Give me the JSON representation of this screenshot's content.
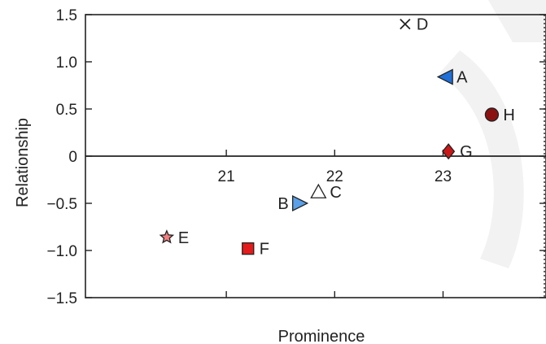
{
  "chart_data": {
    "type": "scatter",
    "title": "",
    "xlabel": "Prominence",
    "ylabel": "Relationship",
    "xlim": [
      19.7,
      23.95
    ],
    "ylim": [
      -1.5,
      1.5
    ],
    "x_ticks": [
      {
        "value": 21,
        "label": "21"
      },
      {
        "value": 22,
        "label": "22"
      },
      {
        "value": 23,
        "label": "23"
      }
    ],
    "y_ticks": [
      {
        "value": 1.5,
        "label": "1.5"
      },
      {
        "value": 1.0,
        "label": "1.0"
      },
      {
        "value": 0.5,
        "label": "0.5"
      },
      {
        "value": 0,
        "label": "0"
      },
      {
        "value": -0.5,
        "label": "−0.5"
      },
      {
        "value": -1.0,
        "label": "−1.0"
      },
      {
        "value": -1.5,
        "label": "−1.5"
      }
    ],
    "grid": false,
    "zero_line": true,
    "points": [
      {
        "label": "A",
        "x": 23.02,
        "y": 0.84,
        "marker": "triangle-left",
        "color": "#1f6fd6",
        "label_side": "right"
      },
      {
        "label": "B",
        "x": 21.68,
        "y": -0.5,
        "marker": "triangle-right",
        "color": "#5aa0e8",
        "label_side": "left"
      },
      {
        "label": "C",
        "x": 21.85,
        "y": -0.38,
        "marker": "triangle-up",
        "color": "#ffffff",
        "label_side": "right"
      },
      {
        "label": "D",
        "x": 22.65,
        "y": 1.4,
        "marker": "x",
        "color": "#222222",
        "label_side": "right"
      },
      {
        "label": "E",
        "x": 20.45,
        "y": -0.86,
        "marker": "star",
        "color": "#f08080",
        "label_side": "right"
      },
      {
        "label": "F",
        "x": 21.2,
        "y": -0.98,
        "marker": "square",
        "color": "#e51c1c",
        "label_side": "right"
      },
      {
        "label": "G",
        "x": 23.05,
        "y": 0.05,
        "marker": "diamond",
        "color": "#c81818",
        "label_side": "right"
      },
      {
        "label": "H",
        "x": 23.45,
        "y": 0.44,
        "marker": "circle",
        "color": "#8b1111",
        "label_side": "right"
      }
    ]
  }
}
